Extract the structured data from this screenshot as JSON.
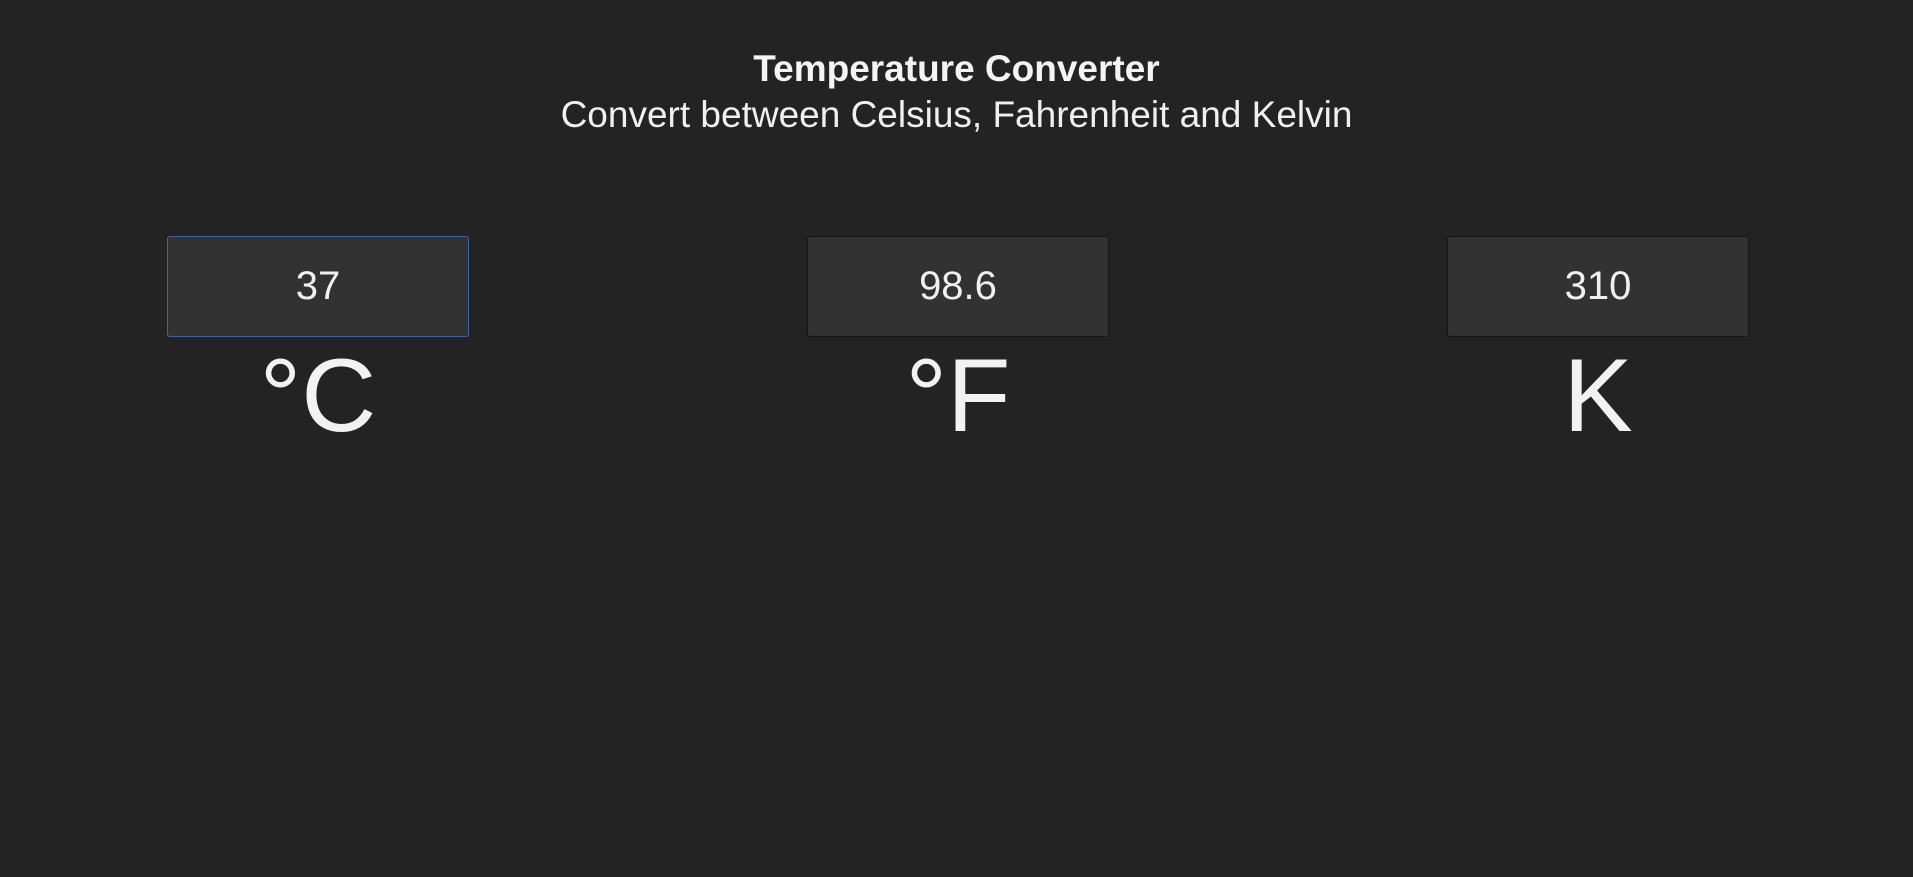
{
  "header": {
    "title": "Temperature Converter",
    "subtitle": "Convert between Celsius, Fahrenheit and Kelvin"
  },
  "converters": {
    "celsius": {
      "value": "37",
      "unit": "°C",
      "focused": true
    },
    "fahrenheit": {
      "value": "98.6",
      "unit": "°F"
    },
    "kelvin": {
      "value": "310",
      "unit": "K"
    }
  },
  "colors": {
    "background": "#232323",
    "input_background": "#323232",
    "focus_border": "#3d63a8",
    "text": "#f2f2f2"
  }
}
